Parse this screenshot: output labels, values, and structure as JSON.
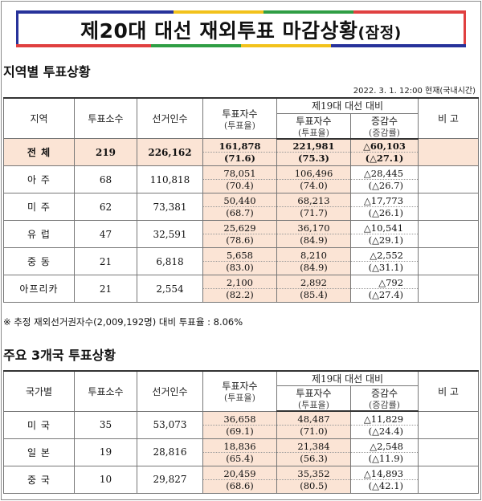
{
  "title": {
    "main": "제20대 대선 재외투표 마감상황",
    "suffix": "(잠정)"
  },
  "section1": {
    "title": "지역별 투표상황",
    "date": "2022. 3. 1. 12:00 현재(국내시간)",
    "headers": {
      "region": "지역",
      "polling": "투표소수",
      "voters": "선거인수",
      "votes": "투표자수",
      "votes_sub": "(투표율)",
      "compare": "제19대 대선 대비",
      "prev": "투표자수",
      "prev_sub": "(투표율)",
      "diff": "증감수",
      "diff_sub": "(증감률)",
      "note": "비 고"
    },
    "rows": [
      {
        "name": "전    체",
        "polling": "219",
        "voters": "226,162",
        "votes": "161,878",
        "rate": "(71.6)",
        "prev_votes": "221,981",
        "prev_rate": "(75.3)",
        "diff": "△60,103",
        "diff_rate": "(△27.1)",
        "note": ""
      },
      {
        "name": "아    주",
        "polling": "68",
        "voters": "110,818",
        "votes": "78,051",
        "rate": "(70.4)",
        "prev_votes": "106,496",
        "prev_rate": "(74.0)",
        "diff": "△28,445",
        "diff_rate": "(△26.7)",
        "note": ""
      },
      {
        "name": "미    주",
        "polling": "62",
        "voters": "73,381",
        "votes": "50,440",
        "rate": "(68.7)",
        "prev_votes": "68,213",
        "prev_rate": "(71.7)",
        "diff": "△17,773",
        "diff_rate": "(△26.1)",
        "note": ""
      },
      {
        "name": "유    럽",
        "polling": "47",
        "voters": "32,591",
        "votes": "25,629",
        "rate": "(78.6)",
        "prev_votes": "36,170",
        "prev_rate": "(84.9)",
        "diff": "△10,541",
        "diff_rate": "(△29.1)",
        "note": ""
      },
      {
        "name": "중    동",
        "polling": "21",
        "voters": "6,818",
        "votes": "5,658",
        "rate": "(83.0)",
        "prev_votes": "8,210",
        "prev_rate": "(84.9)",
        "diff": "△2,552",
        "diff_rate": "(△31.1)",
        "note": ""
      },
      {
        "name": "아프리카",
        "polling": "21",
        "voters": "2,554",
        "votes": "2,100",
        "rate": "(82.2)",
        "prev_votes": "2,892",
        "prev_rate": "(85.4)",
        "diff": "△792",
        "diff_rate": "(△27.4)",
        "note": ""
      }
    ],
    "footnote": "※ 추정 재외선거권자수(2,009,192명) 대비 투표율 : 8.06%"
  },
  "section2": {
    "title": "주요 3개국 투표상황",
    "headers": {
      "country": "국가별",
      "polling": "투표소수",
      "voters": "선거인수",
      "votes": "투표자수",
      "votes_sub": "(투표율)",
      "compare": "제19대 대선 대비",
      "prev": "투표자수",
      "prev_sub": "(투표율)",
      "diff": "증감수",
      "diff_sub": "(증감률)",
      "note": "비 고"
    },
    "rows": [
      {
        "name": "미    국",
        "polling": "35",
        "voters": "53,073",
        "votes": "36,658",
        "rate": "(69.1)",
        "prev_votes": "48,487",
        "prev_rate": "(71.0)",
        "diff": "△11,829",
        "diff_rate": "(△24.4)",
        "note": ""
      },
      {
        "name": "일    본",
        "polling": "19",
        "voters": "28,816",
        "votes": "18,836",
        "rate": "(65.4)",
        "prev_votes": "21,384",
        "prev_rate": "(56.3)",
        "diff": "△2,548",
        "diff_rate": "(△11.9)",
        "note": ""
      },
      {
        "name": "중    국",
        "polling": "10",
        "voters": "29,827",
        "votes": "20,459",
        "rate": "(68.6)",
        "prev_votes": "35,352",
        "prev_rate": "(80.5)",
        "diff": "△14,893",
        "diff_rate": "(△42.1)",
        "note": ""
      }
    ]
  },
  "colors": {
    "highlight": "#fbe4d5",
    "banner_blue": "#27329a",
    "banner_red": "#e04040",
    "banner_yellow": "#f2c21b",
    "banner_green": "#2f9e44"
  }
}
